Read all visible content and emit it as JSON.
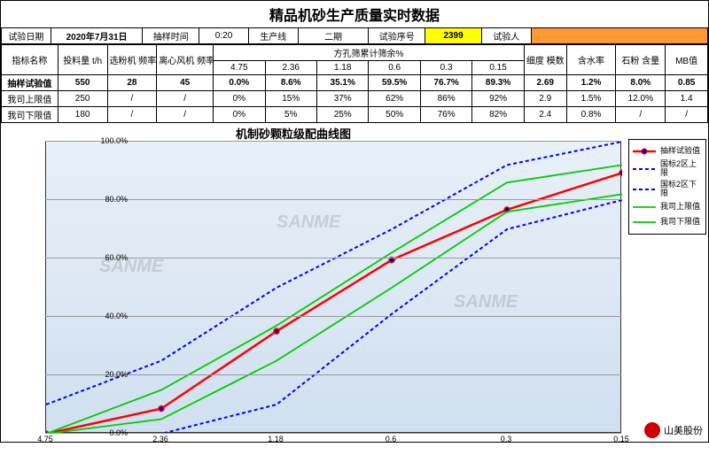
{
  "title": "精品机砂生产质量实时数据",
  "header": {
    "labels": {
      "test_date": "试验日期",
      "date_val": "2020年7月31日",
      "sample_time": "抽样时间",
      "time_val": "0:20",
      "prod_line": "生产线",
      "line_val": "二期",
      "test_no": "试验序号",
      "test_no_val": "2399",
      "tester": "试验人",
      "tester_val": ""
    }
  },
  "table": {
    "col_group": "方孔筛累计筛余%",
    "cols": [
      "指标名称",
      "投料量 t/h",
      "选粉机 频率HZ",
      "离心风机 频率HZ",
      "4.75",
      "2.36",
      "1.18",
      "0.6",
      "0.3",
      "0.15",
      "细度 模数",
      "含水率",
      "石粉 含量",
      "MB值"
    ],
    "rows": [
      {
        "name": "抽样试验值",
        "bold": true,
        "cells": [
          "550",
          "28",
          "45",
          "0.0%",
          "8.6%",
          "35.1%",
          "59.5%",
          "76.7%",
          "89.3%",
          "2.69",
          "1.2%",
          "8.0%",
          "0.85"
        ]
      },
      {
        "name": "我司上限值",
        "cells": [
          "250",
          "/",
          "/",
          "0%",
          "15%",
          "37%",
          "62%",
          "86%",
          "92%",
          "2.9",
          "1.5%",
          "12.0%",
          "1.4"
        ]
      },
      {
        "name": "我司下限值",
        "cells": [
          "180",
          "/",
          "/",
          "0%",
          "5%",
          "25%",
          "50%",
          "76%",
          "82%",
          "2.4",
          "0.8%",
          "/",
          "/"
        ]
      }
    ]
  },
  "chart": {
    "title": "机制砂颗粒级配曲线图",
    "x_categories": [
      "4.75",
      "2.36",
      "1.18",
      "0.6",
      "0.3",
      "0.15"
    ],
    "x_positions": [
      0,
      0.2,
      0.4,
      0.6,
      0.8,
      1.0
    ],
    "ylim": [
      0,
      100
    ],
    "ytick_step": 20,
    "ytick_fmt": "%",
    "grid_color": "#999999",
    "bg_gradient": [
      "#e8f0f8",
      "#d0e0f0"
    ],
    "series": [
      {
        "key": "sample",
        "label": "抽样试验值",
        "color": "#ff0000",
        "width": 2.5,
        "marker": "circle",
        "marker_fill": "#0000aa",
        "marker_size": 6,
        "dash": "",
        "y": [
          0.0,
          8.6,
          35.1,
          59.5,
          76.7,
          89.3
        ]
      },
      {
        "key": "gb_upper",
        "label": "国标2区上限",
        "color": "#0000ff",
        "width": 2,
        "marker": "",
        "dash": "4 3",
        "y": [
          10,
          25,
          50,
          70,
          92,
          100
        ]
      },
      {
        "key": "gb_lower",
        "label": "国标2区下限",
        "color": "#0000ff",
        "width": 2,
        "marker": "",
        "dash": "4 3",
        "y": [
          0,
          0,
          10,
          41,
          70,
          80
        ]
      },
      {
        "key": "co_upper",
        "label": "我司上限值",
        "color": "#00cc00",
        "width": 1.8,
        "marker": "",
        "dash": "",
        "y": [
          0,
          15,
          37,
          62,
          86,
          92
        ]
      },
      {
        "key": "co_lower",
        "label": "我司下限值",
        "color": "#00cc00",
        "width": 1.8,
        "marker": "",
        "dash": "",
        "y": [
          0,
          5,
          25,
          50,
          76,
          82
        ]
      }
    ],
    "legend": [
      {
        "series": "sample",
        "text": "抽样试验值"
      },
      {
        "series": "gb_upper",
        "text": "国标2区上限"
      },
      {
        "series": "gb_lower",
        "text": "国标2区下限"
      },
      {
        "series": "co_upper",
        "text": "我司上限值"
      },
      {
        "series": "co_lower",
        "text": "我司下限值"
      }
    ],
    "watermark": "SANME"
  },
  "footer": {
    "brand": "山美股份"
  }
}
